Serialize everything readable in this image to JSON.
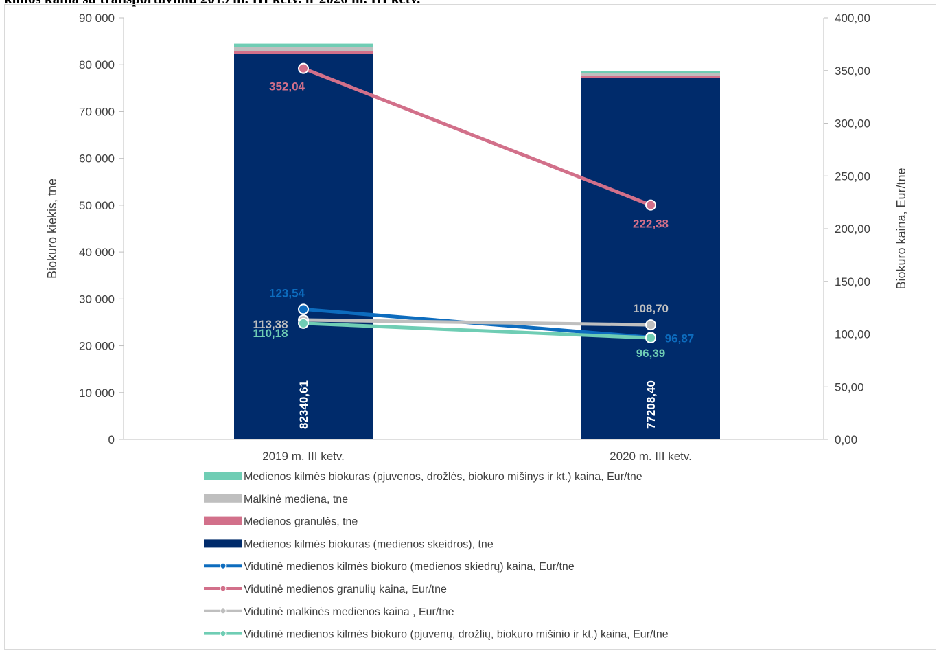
{
  "page": {
    "title": "kimos kaina su transportavimu 2019 m. III ketv. ir 2020 m. III ketv."
  },
  "colors": {
    "skeidros": "#002b6b",
    "granules": "#d2708a",
    "malkine": "#bfbfbf",
    "pjuvenos": "#6fcdb4",
    "line_skiedru": "#0d6cbe",
    "line_granuliu": "#d2708a",
    "line_malkines": "#bfbfbf",
    "line_pjuvenu": "#6fcdb4"
  },
  "chart_data": {
    "type": "bar",
    "stacked": true,
    "combo": "bar+line",
    "categories": [
      "2019 m. III ketv.",
      "2020 m. III ketv."
    ],
    "y_left": {
      "label": "Biokuro kiekis, tne",
      "lim": [
        0,
        90000
      ],
      "ticks": [
        0,
        10000,
        20000,
        30000,
        40000,
        50000,
        60000,
        70000,
        80000,
        90000
      ],
      "tick_labels": [
        "0",
        "10 000",
        "20 000",
        "30 000",
        "40 000",
        "50 000",
        "60 000",
        "70 000",
        "80 000",
        "90 000"
      ]
    },
    "y_right": {
      "label": "Biokuro kaina, Eur/tne",
      "lim": [
        0,
        400
      ],
      "ticks": [
        0,
        50,
        100,
        150,
        200,
        250,
        300,
        350,
        400
      ],
      "tick_labels": [
        "0,00",
        "50,00",
        "100,00",
        "150,00",
        "200,00",
        "250,00",
        "300,00",
        "350,00",
        "400,00"
      ]
    },
    "bar_series": [
      {
        "name": "Medienos kilmės biokuras (medienos skeidros),  tne",
        "color_key": "skeidros",
        "values": [
          82340.61,
          77208.4
        ],
        "labels": [
          "82340,61",
          "77208,40"
        ]
      },
      {
        "name": "Medienos granulės, tne",
        "color_key": "granules",
        "values": [
          500,
          450
        ],
        "labels": []
      },
      {
        "name": "Malkinė mediena, tne",
        "color_key": "malkine",
        "values": [
          1000,
          550
        ],
        "labels": []
      },
      {
        "name": "Medienos kilmės biokuras (pjuvenos, drožlės, biokuro mišinys ir kt.) kaina, Eur/tne",
        "color_key": "pjuvenos",
        "values": [
          650,
          450
        ],
        "labels": []
      }
    ],
    "line_series": [
      {
        "name": "Vidutinė medienos kilmės biokuro (medienos skiedrų) kaina, Eur/tne",
        "color_key": "line_skiedru",
        "values": [
          123.54,
          96.87
        ],
        "labels": [
          "123,54",
          "96,87"
        ]
      },
      {
        "name": "Vidutinė medienos granulių  kaina, Eur/tne",
        "color_key": "line_granuliu",
        "values": [
          352.04,
          222.38
        ],
        "labels": [
          "352,04",
          "222,38"
        ]
      },
      {
        "name": "Vidutinė malkinės medienos kaina , Eur/tne",
        "color_key": "line_malkines",
        "values": [
          113.38,
          108.7
        ],
        "labels": [
          "113,38",
          "108,70"
        ]
      },
      {
        "name": "Vidutinė medienos kilmės biokuro (pjuvenų, drožlių, biokuro mišinio ir kt.) kaina, Eur/tne",
        "color_key": "line_pjuvenu",
        "values": [
          110.18,
          96.39
        ],
        "labels": [
          "110,18",
          "96,39"
        ]
      }
    ],
    "legend": {
      "placement": "bottom",
      "order": [
        "pjuvenos",
        "malkine",
        "granules",
        "skeidros",
        "line_skiedru",
        "line_granuliu",
        "line_malkines",
        "line_pjuvenu"
      ],
      "entries": [
        "Medienos kilmės biokuras (pjuvenos, drožlės, biokuro mišinys ir kt.) kaina, Eur/tne",
        "Malkinė mediena, tne",
        "Medienos granulės, tne",
        "Medienos kilmės biokuras (medienos skeidros),  tne",
        "Vidutinė medienos kilmės biokuro (medienos skiedrų) kaina, Eur/tne",
        "Vidutinė medienos granulių  kaina, Eur/tne",
        "Vidutinė malkinės medienos kaina , Eur/tne",
        "Vidutinė medienos kilmės biokuro (pjuvenų, drožlių, biokuro mišinio ir kt.) kaina, Eur/tne"
      ]
    },
    "grid": false
  }
}
